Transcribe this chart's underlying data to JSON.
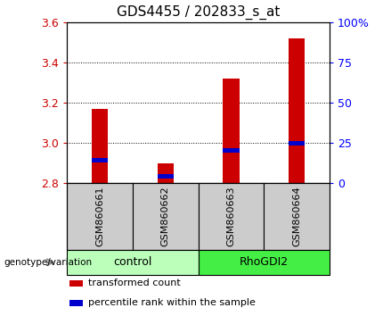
{
  "title": "GDS4455 / 202833_s_at",
  "samples": [
    "GSM860661",
    "GSM860662",
    "GSM860663",
    "GSM860664"
  ],
  "transformed_counts": [
    3.17,
    2.9,
    3.32,
    3.52
  ],
  "percentile_values": [
    2.915,
    2.835,
    2.965,
    3.0
  ],
  "ylim_left": [
    2.8,
    3.6
  ],
  "ylim_right": [
    0,
    100
  ],
  "yticks_left": [
    2.8,
    3.0,
    3.2,
    3.4,
    3.6
  ],
  "yticks_right": [
    0,
    25,
    50,
    75,
    100
  ],
  "ytick_labels_right": [
    "0",
    "25",
    "50",
    "75",
    "100%"
  ],
  "bar_color": "#cc0000",
  "percentile_color": "#0000cc",
  "bar_width": 0.25,
  "left_tick_color": "#cc0000",
  "right_tick_color": "#0000ff",
  "sample_area_color": "#cccccc",
  "group_spans": [
    {
      "label": "control",
      "start": 0,
      "end": 1,
      "color": "#bbffbb"
    },
    {
      "label": "RhoGDI2",
      "start": 2,
      "end": 3,
      "color": "#44ee44"
    }
  ],
  "legend_items": [
    "transformed count",
    "percentile rank within the sample"
  ],
  "legend_colors": [
    "#cc0000",
    "#0000cc"
  ],
  "xlabel_main": "genotype/variation",
  "title_fontsize": 11,
  "tick_fontsize": 9,
  "sample_fontsize": 8,
  "group_fontsize": 9,
  "legend_fontsize": 8
}
